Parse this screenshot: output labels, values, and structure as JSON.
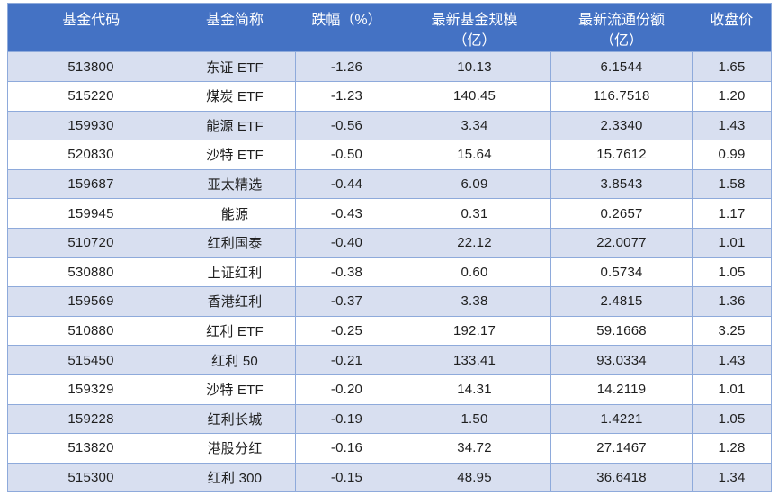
{
  "colors": {
    "header_bg": "#4472C4",
    "header_text": "#FFFFFF",
    "band_row_bg": "#D8DFF0",
    "plain_row_bg": "#FFFFFF",
    "border": "#8EAADB",
    "body_text": "#1F1F1F"
  },
  "table": {
    "headers_display": [
      "基金代码",
      "基金简称",
      "跌幅（%）",
      "最新基金规模\n（亿）",
      "最新流通份额\n（亿）",
      "收盘价"
    ]
  },
  "column_keys": [
    "code",
    "name",
    "drop-pct",
    "fund-scale",
    "circulating-shares",
    "close-price"
  ],
  "chart_data": {
    "type": "table",
    "columns": [
      "基金代码",
      "基金简称",
      "跌幅（%）",
      "最新基金规模（亿）",
      "最新流通份额（亿）",
      "收盘价"
    ],
    "rows": [
      [
        "513800",
        "东证 ETF",
        "-1.26",
        "10.13",
        "6.1544",
        "1.65"
      ],
      [
        "515220",
        "煤炭 ETF",
        "-1.23",
        "140.45",
        "116.7518",
        "1.20"
      ],
      [
        "159930",
        "能源 ETF",
        "-0.56",
        "3.34",
        "2.3340",
        "1.43"
      ],
      [
        "520830",
        "沙特 ETF",
        "-0.50",
        "15.64",
        "15.7612",
        "0.99"
      ],
      [
        "159687",
        "亚太精选",
        "-0.44",
        "6.09",
        "3.8543",
        "1.58"
      ],
      [
        "159945",
        "能源",
        "-0.43",
        "0.31",
        "0.2657",
        "1.17"
      ],
      [
        "510720",
        "红利国泰",
        "-0.40",
        "22.12",
        "22.0077",
        "1.01"
      ],
      [
        "530880",
        "上证红利",
        "-0.38",
        "0.60",
        "0.5734",
        "1.05"
      ],
      [
        "159569",
        "香港红利",
        "-0.37",
        "3.38",
        "2.4815",
        "1.36"
      ],
      [
        "510880",
        "红利 ETF",
        "-0.25",
        "192.17",
        "59.1668",
        "3.25"
      ],
      [
        "515450",
        "红利 50",
        "-0.21",
        "133.41",
        "93.0334",
        "1.43"
      ],
      [
        "159329",
        "沙特 ETF",
        "-0.20",
        "14.31",
        "14.2119",
        "1.01"
      ],
      [
        "159228",
        "红利长城",
        "-0.19",
        "1.50",
        "1.4221",
        "1.05"
      ],
      [
        "513820",
        "港股分红",
        "-0.16",
        "34.72",
        "27.1467",
        "1.28"
      ],
      [
        "515300",
        "红利 300",
        "-0.15",
        "48.95",
        "36.6418",
        "1.34"
      ]
    ]
  }
}
